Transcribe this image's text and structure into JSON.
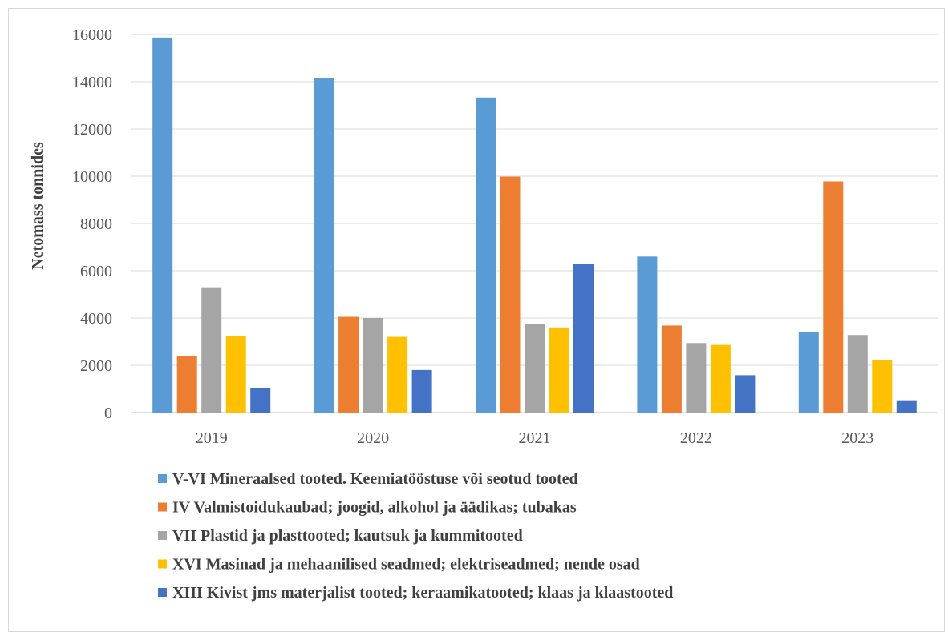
{
  "chart_data": {
    "type": "bar",
    "title": "",
    "xlabel": "",
    "ylabel": "Netomass tonnides",
    "ylim": [
      0,
      16000
    ],
    "yticks": [
      0,
      2000,
      4000,
      6000,
      8000,
      10000,
      12000,
      14000,
      16000
    ],
    "grid": true,
    "legend_position": "bottom",
    "categories": [
      "2019",
      "2020",
      "2021",
      "2022",
      "2023"
    ],
    "series": [
      {
        "name": "V-VI Mineraalsed tooted. Keemiatööstuse või seotud tooted",
        "color": "#5B9BD5",
        "values": [
          15870,
          14150,
          13330,
          6600,
          3400
        ]
      },
      {
        "name": "IV Valmistoidukaubad; joogid, alkohol ja äädikas; tubakas",
        "color": "#ED7D31",
        "values": [
          2380,
          4050,
          9980,
          3680,
          9780
        ]
      },
      {
        "name": "VII Plastid ja plasttooted; kautsuk ja kummitooted",
        "color": "#A5A5A5",
        "values": [
          5300,
          4000,
          3760,
          2940,
          3280
        ]
      },
      {
        "name": "XVI Masinad ja mehaanilised seadmed; elektriseadmed; nende osad",
        "color": "#FFC000",
        "values": [
          3230,
          3200,
          3600,
          2860,
          2220
        ]
      },
      {
        "name": "XIII Kivist jms materjalist tooted; keraamikatooted; klaas ja klaastooted",
        "color": "#4472C4",
        "values": [
          1040,
          1800,
          6280,
          1580,
          520
        ]
      }
    ]
  }
}
